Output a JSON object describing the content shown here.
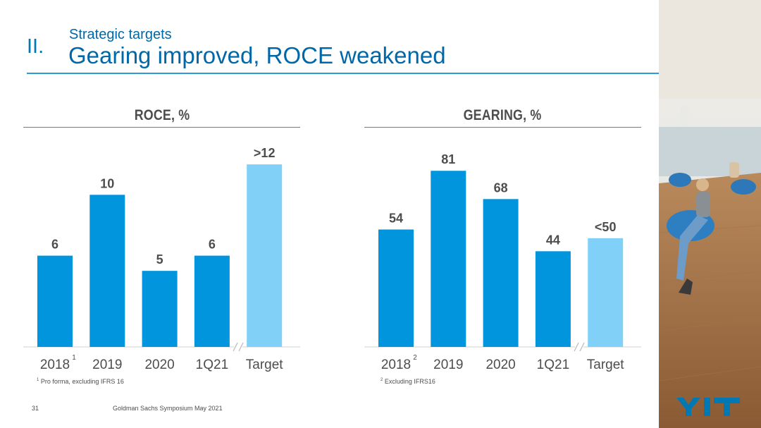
{
  "header": {
    "section_number": "II.",
    "subtitle": "Strategic targets",
    "title": "Gearing improved, ROCE weakened"
  },
  "chart_data": [
    {
      "type": "bar",
      "title": "ROCE, %",
      "categories": [
        "2018",
        "2019",
        "2020",
        "1Q21",
        "Target"
      ],
      "category_superscripts": [
        "1",
        "",
        "",
        "",
        ""
      ],
      "values": [
        6,
        10,
        5,
        6,
        12
      ],
      "value_labels": [
        "6",
        "10",
        "5",
        "6",
        ">12"
      ],
      "bar_colors": [
        "#0095dd",
        "#0095dd",
        "#0095dd",
        "#0095dd",
        "#80d0f8"
      ],
      "axis_break_before": "Target",
      "ylim": [
        0,
        14
      ],
      "footnote_mark": "1",
      "footnote": "Pro forma,  excluding  IFRS 16"
    },
    {
      "type": "bar",
      "title": "GEARING, %",
      "categories": [
        "2018",
        "2019",
        "2020",
        "1Q21",
        "Target"
      ],
      "category_superscripts": [
        "2",
        "",
        "",
        "",
        ""
      ],
      "values": [
        54,
        81,
        68,
        44,
        50
      ],
      "value_labels": [
        "54",
        "81",
        "68",
        "44",
        "<50"
      ],
      "bar_colors": [
        "#0095dd",
        "#0095dd",
        "#0095dd",
        "#0095dd",
        "#80d0f8"
      ],
      "axis_break_before": "Target",
      "ylim": [
        0,
        95
      ],
      "footnote_mark": "2",
      "footnote": "Excluding  IFRS16"
    }
  ],
  "footer": {
    "page_number": "31",
    "event": "Goldman  Sachs Symposium  May 2021"
  },
  "brand": {
    "logo_text": "YIT",
    "logo_color": "#0078b4"
  }
}
